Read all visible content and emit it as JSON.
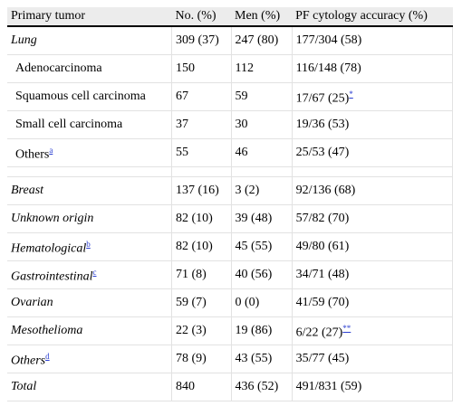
{
  "table": {
    "header": [
      "Primary tumor",
      "No. (%)",
      "Men (%)",
      "PF cytology accuracy (%)"
    ],
    "groups": [
      [
        {
          "italic": true,
          "cells": [
            "Lung",
            "309 (37)",
            "247 (80)",
            "177/304 (58)"
          ]
        },
        {
          "indent": true,
          "cells": [
            "Adenocarcinoma",
            "150",
            "112",
            "116/148 (78)"
          ]
        },
        {
          "indent": true,
          "cells": [
            "Squamous cell carcinoma",
            "67",
            "59",
            {
              "text": "17/67 (25)",
              "sup": "*"
            }
          ]
        },
        {
          "indent": true,
          "cells": [
            "Small cell carcinoma",
            "37",
            "30",
            "19/36 (53)"
          ]
        },
        {
          "indent": true,
          "cells": [
            {
              "text": "Others",
              "sup": "a"
            },
            "55",
            "46",
            "25/53 (47)"
          ]
        }
      ],
      [
        {
          "italic": true,
          "cells": [
            "Breast",
            "137 (16)",
            "3 (2)",
            "92/136 (68)"
          ]
        },
        {
          "italic": true,
          "cells": [
            "Unknown origin",
            "82 (10)",
            "39 (48)",
            "57/82 (70)"
          ]
        },
        {
          "italic": true,
          "cells": [
            {
              "text": "Hematological",
              "sup": "b"
            },
            "82 (10)",
            "45 (55)",
            "49/80 (61)"
          ]
        },
        {
          "italic": true,
          "cells": [
            {
              "text": "Gastrointestinal",
              "sup": "c"
            },
            "71 (8)",
            "40 (56)",
            "34/71 (48)"
          ]
        },
        {
          "italic": true,
          "cells": [
            "Ovarian",
            "59 (7)",
            "0 (0)",
            "41/59 (70)"
          ]
        },
        {
          "italic": true,
          "cells": [
            "Mesothelioma",
            "22 (3)",
            "19 (86)",
            {
              "text": "6/22 (27)",
              "sup": "**"
            }
          ]
        },
        {
          "italic": true,
          "cells": [
            {
              "text": "Others",
              "sup": "d"
            },
            "78 (9)",
            "43 (55)",
            "35/77 (45)"
          ]
        },
        {
          "italic": true,
          "cells": [
            "Total",
            "840",
            "436 (52)",
            "491/831 (59)"
          ]
        }
      ]
    ]
  }
}
